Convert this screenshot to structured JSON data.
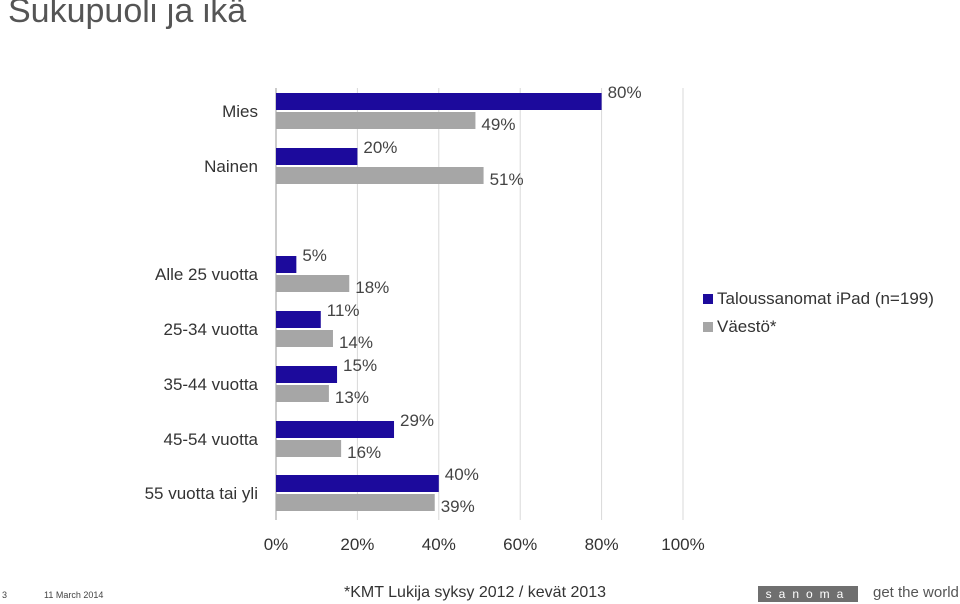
{
  "title": "Sukupuoli ja ikä",
  "chart_data": {
    "type": "bar",
    "orientation": "horizontal",
    "categories": [
      "Mies",
      "Nainen",
      "Alle 25 vuotta",
      "25-34 vuotta",
      "35-44 vuotta",
      "45-54 vuotta",
      "55 vuotta tai yli"
    ],
    "series": [
      {
        "name": "Taloussanomat iPad (n=199)",
        "values": [
          80,
          20,
          5,
          11,
          15,
          29,
          40
        ],
        "labels": [
          "80%",
          "20%",
          "5%",
          "11%",
          "15%",
          "29%",
          "40%"
        ]
      },
      {
        "name": "Väestö*",
        "values": [
          49,
          51,
          18,
          14,
          13,
          16,
          39
        ],
        "labels": [
          "49%",
          "51%",
          "18%",
          "14%",
          "13%",
          "16%",
          "39%"
        ]
      }
    ],
    "xlim": [
      0,
      100
    ],
    "x_ticks": [
      "0%",
      "20%",
      "40%",
      "60%",
      "80%",
      "100%"
    ],
    "x_tick_values": [
      0,
      20,
      40,
      60,
      80,
      100
    ],
    "legend_position": "right",
    "grid": true,
    "colors": [
      "#1c0a9c",
      "#a6a6a6"
    ]
  },
  "footer": {
    "page_number": "3",
    "date": "11 March 2014",
    "source": "*KMT Lukija syksy 2012 / kevät 2013",
    "brand": "sanoma",
    "tagline": "get the world"
  }
}
